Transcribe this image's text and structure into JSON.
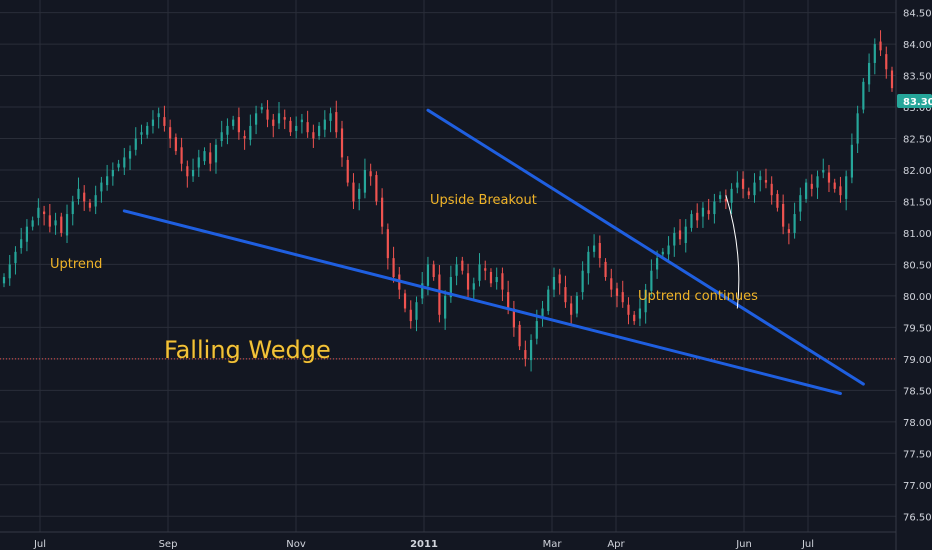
{
  "chart_data": {
    "type": "candlestick",
    "title": "Falling Wedge",
    "ylim": [
      76.25,
      84.7
    ],
    "y_ticks": [
      76.5,
      77.0,
      77.5,
      78.0,
      78.5,
      79.0,
      79.5,
      80.0,
      80.5,
      81.0,
      81.5,
      82.0,
      82.5,
      83.0,
      83.5,
      84.0,
      84.5
    ],
    "y_tick_labels": [
      "76.50",
      "77.00",
      "77.50",
      "78.00",
      "78.50",
      "79.00",
      "79.50",
      "80.00",
      "80.50",
      "81.00",
      "81.50",
      "82.00",
      "82.50",
      "83.00",
      "83.50",
      "84.00",
      "84.50"
    ],
    "x_labels": [
      "Jul",
      "Sep",
      "Nov",
      "2011",
      "Mar",
      "Apr",
      "Jun",
      "Jul"
    ],
    "x_label_index": [
      10,
      42,
      74,
      106,
      138,
      154,
      186,
      202
    ],
    "x_bold": [
      false,
      false,
      false,
      true,
      false,
      false,
      false,
      false
    ],
    "last_price": "83.30",
    "last_price_value": 83.3,
    "reference_level": 79.0,
    "grid": true,
    "colors": {
      "up": "#26a69a",
      "down": "#ef5350",
      "background": "#131722",
      "grid": "#2a2e39",
      "trendline": "#1f5fe0",
      "annotation": "#f0b429",
      "reference": "#ef5350",
      "badge": "#26a69a"
    },
    "closes": [
      80.3,
      80.5,
      80.7,
      80.9,
      81.1,
      81.2,
      81.4,
      81.3,
      81.1,
      81.2,
      81.0,
      81.3,
      81.5,
      81.7,
      81.5,
      81.4,
      81.6,
      81.8,
      81.9,
      82.0,
      82.1,
      82.2,
      82.3,
      82.5,
      82.6,
      82.7,
      82.8,
      82.9,
      82.7,
      82.5,
      82.3,
      82.1,
      81.9,
      82.0,
      82.2,
      82.3,
      82.1,
      82.4,
      82.6,
      82.7,
      82.8,
      82.6,
      82.5,
      82.7,
      82.9,
      83.0,
      82.8,
      82.7,
      82.9,
      82.8,
      82.6,
      82.7,
      82.8,
      82.6,
      82.5,
      82.7,
      82.8,
      82.9,
      82.6,
      82.2,
      81.8,
      81.5,
      81.7,
      82.0,
      81.9,
      81.5,
      81.1,
      80.6,
      80.3,
      80.1,
      79.8,
      79.6,
      79.9,
      80.2,
      80.5,
      80.3,
      79.7,
      80.0,
      80.3,
      80.5,
      80.4,
      80.1,
      80.2,
      80.5,
      80.4,
      80.2,
      80.3,
      80.1,
      79.8,
      79.5,
      79.2,
      79.0,
      79.3,
      79.6,
      79.8,
      80.1,
      80.3,
      80.2,
      79.9,
      79.7,
      80.0,
      80.4,
      80.7,
      80.8,
      80.6,
      80.3,
      80.1,
      80.0,
      79.9,
      79.7,
      79.6,
      79.8,
      80.1,
      80.4,
      80.6,
      80.7,
      80.8,
      81.0,
      80.9,
      81.1,
      81.3,
      81.2,
      81.4,
      81.3,
      81.5,
      81.6,
      81.5,
      81.7,
      81.8,
      81.7,
      81.6,
      81.8,
      81.9,
      81.8,
      81.6,
      81.4,
      81.1,
      81.0,
      81.3,
      81.6,
      81.8,
      81.7,
      81.9,
      82.0,
      81.8,
      81.7,
      81.6,
      81.9,
      82.4,
      82.9,
      83.4,
      83.7,
      84.0,
      83.9,
      83.6,
      83.3
    ],
    "x_span": [
      0,
      224
    ]
  },
  "annotations": {
    "uptrend": "Uptrend",
    "breakout": "Upside Breakout",
    "continues": "Uptrend continues"
  },
  "trendlines": {
    "upper": {
      "from": {
        "i": 74,
        "price": 82.95
      },
      "to": {
        "i": 150,
        "price": 78.6
      }
    },
    "lower": {
      "from": {
        "i": 21,
        "price": 81.35
      },
      "to": {
        "i": 146,
        "price": 78.45
      }
    },
    "breakout_arrow": {
      "from": {
        "i": 126,
        "price": 81.6
      },
      "to": {
        "i": 128,
        "price": 79.8
      }
    }
  }
}
